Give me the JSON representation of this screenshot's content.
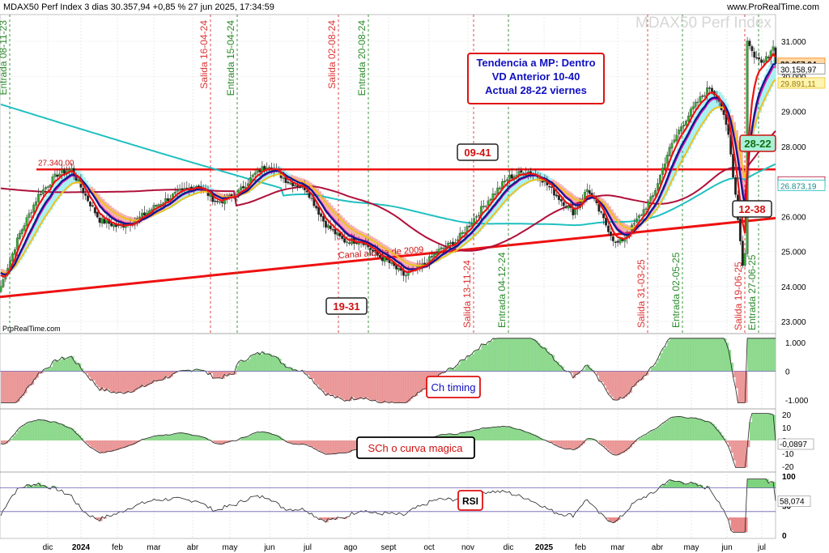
{
  "header": {
    "title": "MDAX50 Perf Index 3 dias 30.357,94 +0,85 % 27 jun 2025, 17:34:59",
    "site": "www.ProRealTime.com",
    "watermark": "MDAX50 Perf Index",
    "credit": "PrpRealTime.com"
  },
  "colors": {
    "price_up": "#33aa33",
    "price_down": "#222222",
    "ma_red": "#ee1111",
    "ma_navy": "#0a1a8c",
    "ma_yellow": "#f0c020",
    "ma_magenta": "#e020b0",
    "ma_teal": "#20c0c0",
    "ma_maroon": "#b0103a",
    "cloud_pos": "#90eef0",
    "cloud_neg": "#f29a9a",
    "trend_red": "#ee1111",
    "osc_pos": "#7ed37e",
    "osc_neg": "#e88a8a",
    "entry_line": "#2a8a2a",
    "exit_line": "#dd3333"
  },
  "chart_data": [
    {
      "type": "candlestick",
      "title": "MDAX50 Perf Index 3 dias",
      "ylim": [
        22700,
        31700
      ],
      "y_ticks": [
        "31.000",
        "30.000",
        "29.000",
        "28.000",
        "27.000",
        "26.000",
        "25.000",
        "24.000",
        "23.000"
      ],
      "x_labels": [
        "dic",
        "2024",
        "feb",
        "mar",
        "abr",
        "may",
        "jun",
        "jul",
        "ago",
        "sept",
        "oct",
        "nov",
        "dic",
        "2025",
        "feb",
        "mar",
        "abr",
        "may",
        "jun",
        "jul"
      ],
      "price_flags": [
        {
          "label": "30.357,94",
          "value": 30357.94,
          "style": "orange-box"
        },
        {
          "label": "30.158,97",
          "value": 30158.97,
          "style": "white"
        },
        {
          "label": "29.891,11",
          "value": 29891.11,
          "style": "yellow"
        },
        {
          "label": "26.970,78",
          "value": 26970.78,
          "style": "maroon"
        },
        {
          "label": "26.873,19",
          "value": 26873.19,
          "style": "teal"
        }
      ],
      "vertical_signals": [
        {
          "label": "Entrada 08-11-23",
          "kind": "entry"
        },
        {
          "label": "Salida 16-04-24",
          "kind": "exit"
        },
        {
          "label": "Entrada 15-04-24",
          "kind": "entry"
        },
        {
          "label": "Salida 02-08-24",
          "kind": "exit"
        },
        {
          "label": "Entrada 20-08-24",
          "kind": "entry"
        },
        {
          "label": "Salida 13-11-24",
          "kind": "exit"
        },
        {
          "label": "Entrada 04-12-24",
          "kind": "entry"
        },
        {
          "label": "Salida 31-03-25",
          "kind": "exit"
        },
        {
          "label": "Entrada 02-05-25",
          "kind": "entry"
        },
        {
          "label": "Salida 19-06-25",
          "kind": "exit"
        },
        {
          "label": "Entrada 27-06-25",
          "kind": "entry"
        }
      ],
      "horizontal_resistance": {
        "label": "27.340,00",
        "value": 27340
      },
      "trendline_label": "Canal alcista de 2009",
      "annotations": [
        {
          "text": "Tendencia a MP: Dentro",
          "box": "info"
        },
        {
          "text": "VD Anterior 10-40",
          "box": "info"
        },
        {
          "text": "Actual 28-22 viernes",
          "box": "info"
        },
        {
          "text": "09-41",
          "box": "red"
        },
        {
          "text": "19-31",
          "box": "dark"
        },
        {
          "text": "28-22",
          "box": "green"
        },
        {
          "text": "12-38",
          "box": "red"
        }
      ]
    },
    {
      "type": "area",
      "title": "Ch timing",
      "ylim": [
        -1.2,
        1.2
      ],
      "y_ticks": [
        "1.000",
        "0",
        "-1.000"
      ]
    },
    {
      "type": "area",
      "title": "SCh o curva magica",
      "ylim": [
        -22,
        22
      ],
      "y_ticks": [
        "20",
        "10",
        "0",
        "-10",
        "-20"
      ],
      "last_value": "-0,0897"
    },
    {
      "type": "line",
      "title": "RSI",
      "ylim": [
        0,
        100
      ],
      "y_ticks": [
        "100",
        "50",
        "0"
      ],
      "last_value": "58,074",
      "levels": [
        80,
        40
      ]
    }
  ]
}
